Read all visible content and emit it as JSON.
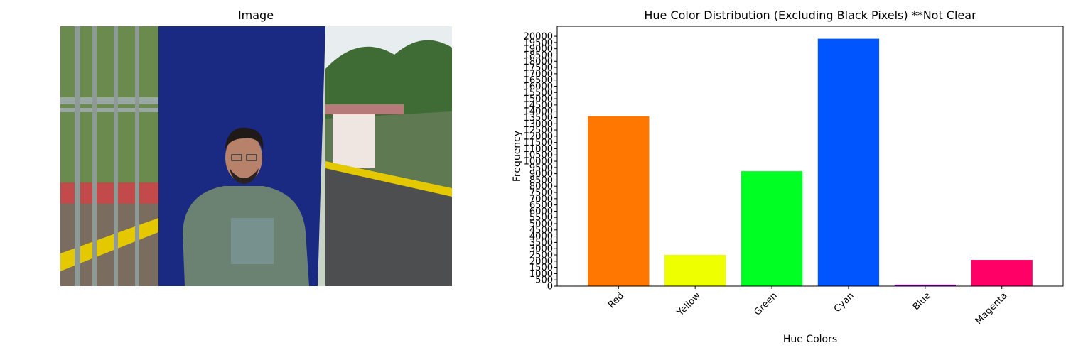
{
  "left_panel": {
    "title": "Image"
  },
  "chart_data": {
    "type": "bar",
    "title": "Hue Color Distribution (Excluding Black Pixels) **Not Clear",
    "xlabel": "Hue Colors",
    "ylabel": "Frequency",
    "categories": [
      "Red",
      "Yellow",
      "Green",
      "Cyan",
      "Blue",
      "Magenta"
    ],
    "values": [
      13600,
      2500,
      9200,
      19800,
      120,
      2100
    ],
    "colors": [
      "#ff7700",
      "#eeff00",
      "#00ff22",
      "#0055ff",
      "#8800cc",
      "#ff0066"
    ],
    "ylim": [
      0,
      20800
    ],
    "ytick_step": 500,
    "grid": false,
    "legend": "none"
  }
}
